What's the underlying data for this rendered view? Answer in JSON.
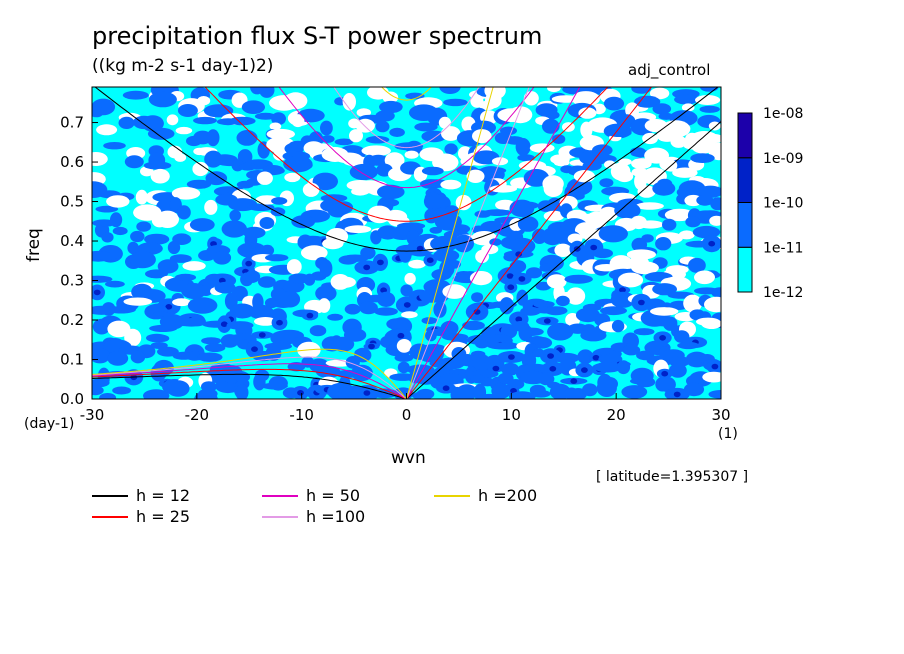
{
  "header": {
    "title": "precipitation flux S-T power spectrum",
    "subtitle": "((kg m-2 s-1 day-1)2)",
    "experiment": "adj_control",
    "latitude_note": "[ latitude=1.395307 ]"
  },
  "chart_data": {
    "type": "heatmap",
    "xlabel": "wvn",
    "xunits": "(1)",
    "ylabel": "freq",
    "yunits": "(day-1)",
    "xlim": [
      -30,
      30
    ],
    "ylim": [
      0,
      0.79
    ],
    "xticks": [
      "-30",
      "-20",
      "-10",
      "0",
      "10",
      "20",
      "30"
    ],
    "yticks": [
      "0.0",
      "0.1",
      "0.2",
      "0.3",
      "0.4",
      "0.5",
      "0.6",
      "0.7"
    ],
    "colorbar": {
      "levels": [
        "1e-12",
        "1e-11",
        "1e-10",
        "1e-09",
        "1e-08"
      ],
      "colors": [
        "#00ffff",
        "#0a6bff",
        "#0022c8",
        "#1c00aa"
      ]
    },
    "dispersion_curves": [
      {
        "name": "h = 12",
        "color": "#000000"
      },
      {
        "name": "h = 25",
        "color": "#ff0000"
      },
      {
        "name": "h = 50",
        "color": "#e000c0"
      },
      {
        "name": "h =100",
        "color": "#e39be6"
      },
      {
        "name": "h =200",
        "color": "#e8d400"
      }
    ]
  }
}
